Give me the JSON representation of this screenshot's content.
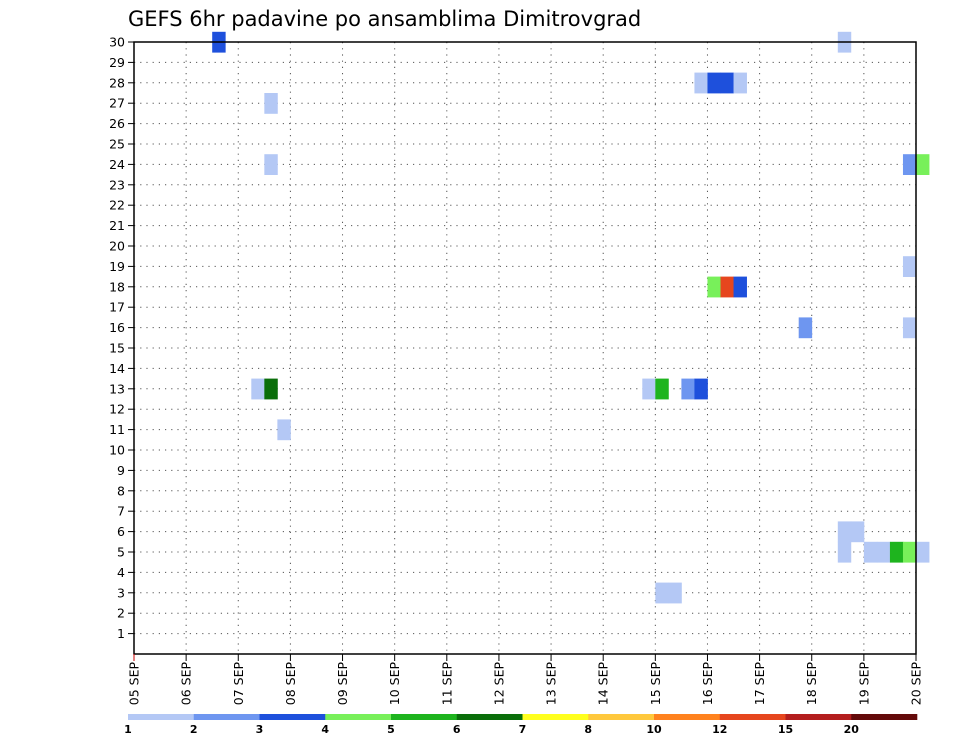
{
  "chart_data": {
    "type": "heatmap",
    "title": "GEFS 6hr padavine po ansamblima Dimitrovgrad",
    "xlabel": "",
    "ylabel": "",
    "x_tick_labels": [
      "05 SEP",
      "06 SEP",
      "07 SEP",
      "08 SEP",
      "09 SEP",
      "10 SEP",
      "11 SEP",
      "12 SEP",
      "13 SEP",
      "14 SEP",
      "15 SEP",
      "16 SEP",
      "17 SEP",
      "18 SEP",
      "19 SEP",
      "20 SEP"
    ],
    "y_tick_labels": [
      "1",
      "2",
      "3",
      "4",
      "5",
      "6",
      "7",
      "8",
      "9",
      "10",
      "11",
      "12",
      "13",
      "14",
      "15",
      "16",
      "17",
      "18",
      "19",
      "20",
      "21",
      "22",
      "23",
      "24",
      "25",
      "26",
      "27",
      "28",
      "29",
      "30"
    ],
    "xlim": [
      "05 SEP 00",
      "20 SEP 00"
    ],
    "ylim": [
      0,
      30
    ],
    "grid": true,
    "colorbar": {
      "labels": [
        "1",
        "2",
        "3",
        "4",
        "5",
        "6",
        "7",
        "8",
        "10",
        "12",
        "15",
        "20"
      ],
      "colors": [
        "#b4c8f5",
        "#6e96f0",
        "#1e50dc",
        "#78f05a",
        "#1eb41e",
        "#0a6e0a",
        "#ffff1e",
        "#ffc83c",
        "#ff821e",
        "#e6461e",
        "#b41e1e",
        "#640a0a"
      ]
    },
    "cells": [
      {
        "time": "06 SEP 12",
        "member": 30,
        "value": 3.5
      },
      {
        "time": "18 SEP 12",
        "member": 30,
        "value": 1.5
      },
      {
        "time": "15 SEP 18",
        "member": 28,
        "value": 1.5
      },
      {
        "time": "16 SEP 00",
        "member": 28,
        "value": 3.5
      },
      {
        "time": "16 SEP 06",
        "member": 28,
        "value": 3.5
      },
      {
        "time": "16 SEP 12",
        "member": 28,
        "value": 1.5
      },
      {
        "time": "07 SEP 12",
        "member": 27,
        "value": 1.5
      },
      {
        "time": "07 SEP 12",
        "member": 24,
        "value": 1.5
      },
      {
        "time": "19 SEP 18",
        "member": 24,
        "value": 2.5
      },
      {
        "time": "20 SEP 00",
        "member": 24,
        "value": 4.5
      },
      {
        "time": "19 SEP 18",
        "member": 19,
        "value": 1.5
      },
      {
        "time": "16 SEP 00",
        "member": 18,
        "value": 4.5
      },
      {
        "time": "16 SEP 06",
        "member": 18,
        "value": 13.0
      },
      {
        "time": "16 SEP 12",
        "member": 18,
        "value": 3.5
      },
      {
        "time": "17 SEP 18",
        "member": 16,
        "value": 2.5
      },
      {
        "time": "19 SEP 18",
        "member": 16,
        "value": 1.5
      },
      {
        "time": "07 SEP 06",
        "member": 13,
        "value": 1.5
      },
      {
        "time": "07 SEP 12",
        "member": 13,
        "value": 6.5
      },
      {
        "time": "14 SEP 18",
        "member": 13,
        "value": 1.5
      },
      {
        "time": "15 SEP 00",
        "member": 13,
        "value": 5.5
      },
      {
        "time": "15 SEP 12",
        "member": 13,
        "value": 2.5
      },
      {
        "time": "15 SEP 18",
        "member": 13,
        "value": 3.5
      },
      {
        "time": "07 SEP 18",
        "member": 11,
        "value": 1.5
      },
      {
        "time": "18 SEP 12",
        "member": 6,
        "value": 1.5
      },
      {
        "time": "18 SEP 18",
        "member": 6,
        "value": 1.5
      },
      {
        "time": "18 SEP 12",
        "member": 5,
        "value": 1.5
      },
      {
        "time": "19 SEP 00",
        "member": 5,
        "value": 1.5
      },
      {
        "time": "19 SEP 06",
        "member": 5,
        "value": 1.5
      },
      {
        "time": "19 SEP 12",
        "member": 5,
        "value": 5.5
      },
      {
        "time": "19 SEP 18",
        "member": 5,
        "value": 4.5
      },
      {
        "time": "20 SEP 00",
        "member": 5,
        "value": 1.5
      },
      {
        "time": "15 SEP 00",
        "member": 3,
        "value": 1.5
      },
      {
        "time": "15 SEP 06",
        "member": 3,
        "value": 1.5
      }
    ]
  }
}
